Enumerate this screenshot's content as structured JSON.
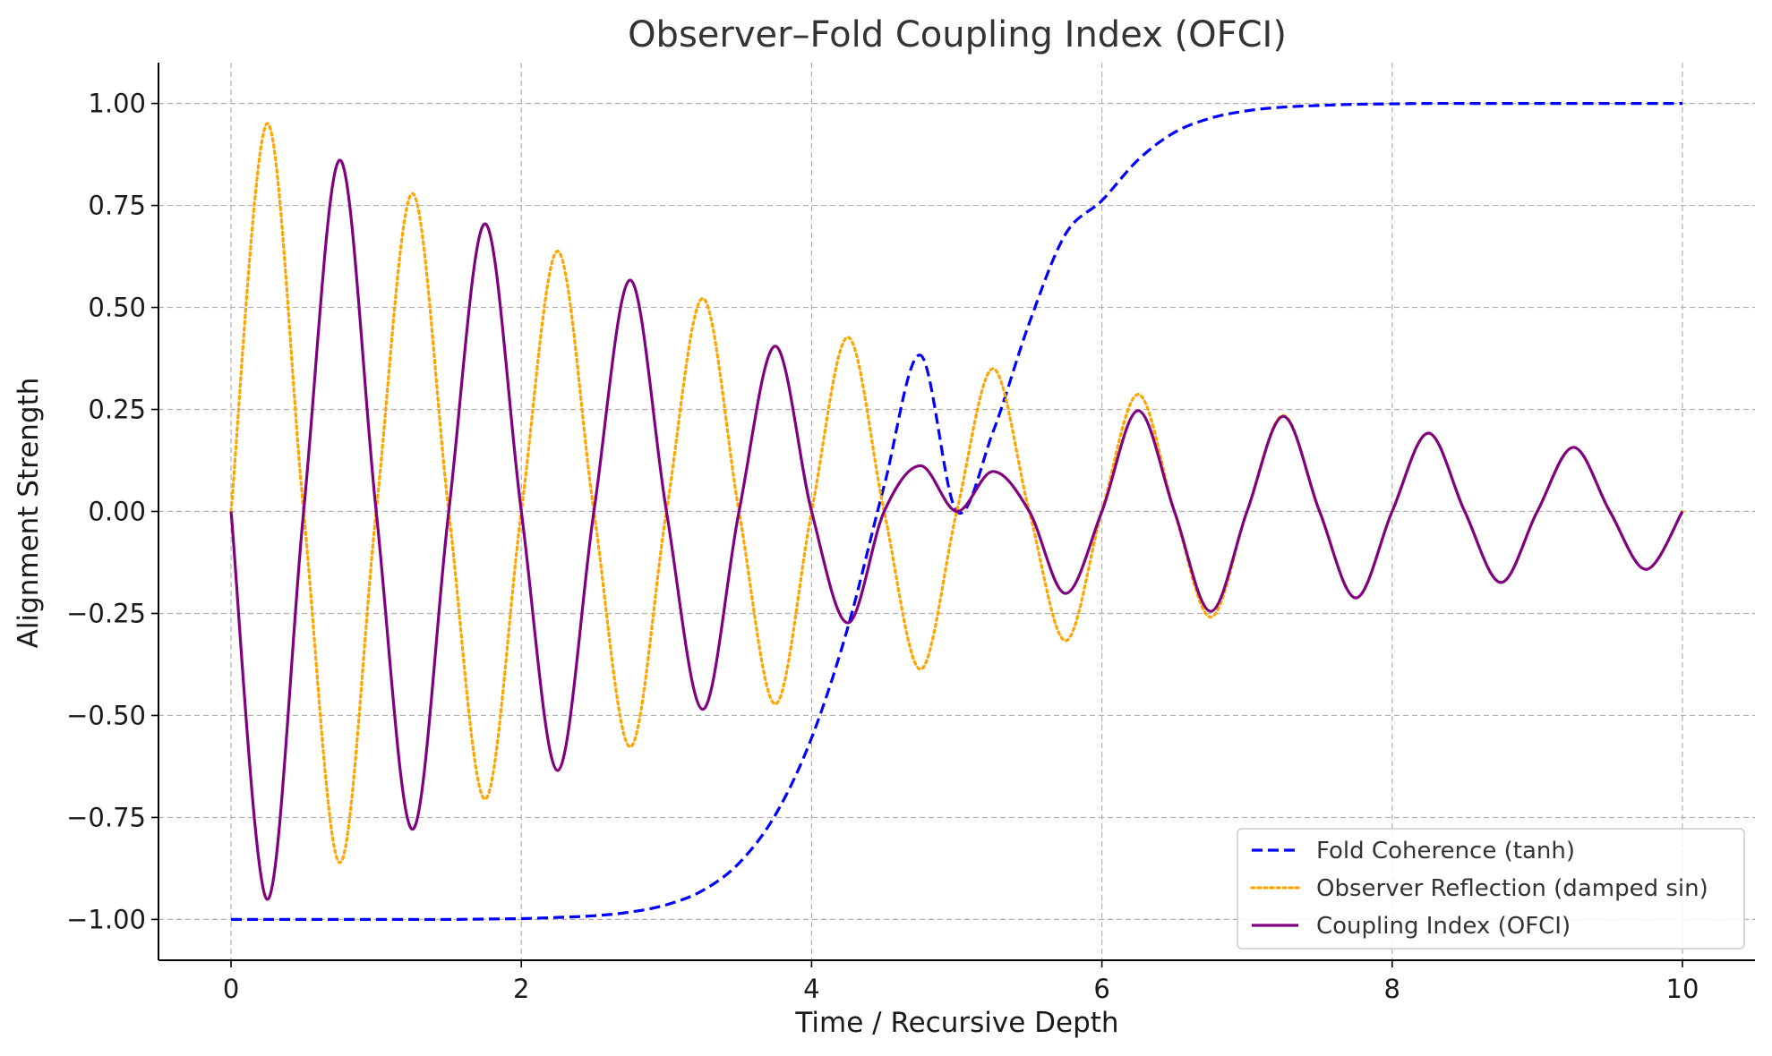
{
  "chart_data": {
    "type": "line",
    "title": "Observer–Fold Coupling Index (OFCI)",
    "xlabel": "Time / Recursive Depth",
    "ylabel": "Alignment Strength",
    "xlim": [
      -0.5,
      10.5
    ],
    "ylim": [
      -1.1,
      1.1
    ],
    "xticks": [
      0,
      2,
      4,
      6,
      8,
      10
    ],
    "xtick_labels": [
      "0",
      "2",
      "4",
      "6",
      "8",
      "10"
    ],
    "yticks": [
      -1.0,
      -0.75,
      -0.5,
      -0.25,
      0.0,
      0.25,
      0.5,
      0.75,
      1.0
    ],
    "ytick_labels": [
      "−1.00",
      "−0.75",
      "−0.50",
      "−0.25",
      "0.00",
      "0.25",
      "0.50",
      "0.75",
      "1.00"
    ],
    "grid": true,
    "legend_position": "lower-right",
    "x": [
      0,
      0.25,
      0.5,
      0.75,
      1.0,
      1.25,
      1.5,
      1.75,
      2.0,
      2.25,
      2.5,
      2.75,
      3.0,
      3.25,
      3.5,
      3.75,
      4.0,
      4.25,
      4.5,
      4.75,
      5.0,
      5.25,
      5.5,
      5.75,
      6.0,
      6.25,
      6.5,
      6.75,
      7.0,
      7.25,
      7.5,
      7.75,
      8.0,
      8.25,
      8.5,
      8.75,
      9.0,
      9.25,
      9.5,
      9.75,
      10.0
    ],
    "series": [
      {
        "name": "Fold Coherence (tanh)",
        "color": "#0000ff",
        "style": "dashed",
        "values": [
          -1.0,
          -1.0,
          -1.0,
          -1.0,
          -1.0,
          -1.0,
          -1.0,
          -0.999,
          -0.998,
          -0.995,
          -0.991,
          -0.982,
          -0.964,
          -0.929,
          -0.862,
          -0.744,
          -0.555,
          -0.284,
          0.063,
          0.383,
          0.0,
          0.195,
          0.462,
          0.68,
          0.762,
          0.862,
          0.929,
          0.964,
          0.982,
          0.991,
          0.995,
          0.998,
          0.999,
          1.0,
          1.0,
          1.0,
          1.0,
          1.0,
          1.0,
          1.0,
          1.0
        ]
      },
      {
        "name": "Observer Reflection (damped sin)",
        "color": "#ffa500",
        "style": "dotted",
        "values": [
          0.0,
          0.951,
          0.0,
          -0.861,
          0.0,
          0.779,
          0.0,
          -0.705,
          0.0,
          0.638,
          0.0,
          -0.577,
          0.0,
          0.522,
          0.0,
          -0.472,
          0.0,
          0.427,
          0.0,
          -0.387,
          0.0,
          0.35,
          0.0,
          -0.317,
          0.0,
          0.287,
          0.0,
          -0.259,
          0.0,
          0.235,
          0.0,
          -0.212,
          0.0,
          0.192,
          0.0,
          -0.174,
          0.0,
          0.157,
          0.0,
          -0.142,
          0.0
        ]
      },
      {
        "name": "Coupling Index (OFCI)",
        "color": "#800080",
        "style": "solid",
        "values": [
          0.0,
          -0.951,
          0.0,
          0.861,
          0.0,
          -0.779,
          0.0,
          0.705,
          0.0,
          -0.635,
          0.0,
          0.567,
          0.0,
          -0.485,
          0.0,
          0.405,
          0.0,
          -0.273,
          0.0,
          0.112,
          0.0,
          0.098,
          0.0,
          -0.201,
          0.0,
          0.247,
          0.0,
          -0.245,
          0.0,
          0.233,
          0.0,
          -0.212,
          0.0,
          0.192,
          0.0,
          -0.174,
          0.0,
          0.157,
          0.0,
          -0.142,
          0.0
        ]
      }
    ]
  }
}
